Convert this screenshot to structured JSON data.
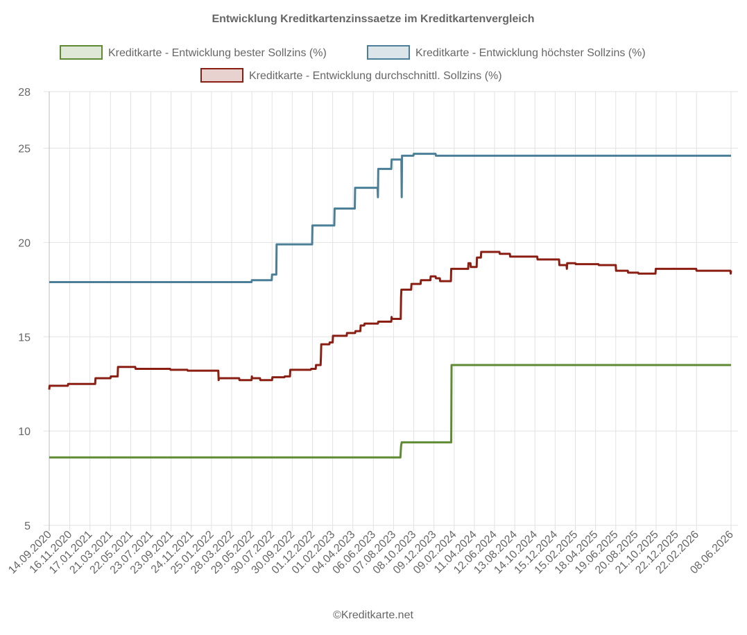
{
  "chart_data": {
    "type": "line",
    "title": "Entwicklung Kreditkartenzinssaetze im Kreditkartenvergleich",
    "credit": "©Kreditkarte.net",
    "grid": true,
    "legend": "top",
    "xlim": [
      "14.09.2020",
      "08.06.2026"
    ],
    "xticks": [
      "14.09.2020",
      "16.11.2020",
      "17.01.2021",
      "21.03.2021",
      "22.05.2021",
      "23.07.2021",
      "23.09.2021",
      "24.11.2021",
      "25.01.2022",
      "28.03.2022",
      "29.05.2022",
      "30.07.2022",
      "30.09.2022",
      "01.12.2022",
      "01.02.2023",
      "04.04.2023",
      "06.06.2023",
      "07.08.2023",
      "08.10.2023",
      "09.12.2023",
      "09.02.2024",
      "11.04.2024",
      "12.06.2024",
      "13.08.2024",
      "14.10.2024",
      "15.12.2024",
      "15.02.2025",
      "18.04.2025",
      "19.06.2025",
      "20.08.2025",
      "21.10.2025",
      "22.12.2025",
      "22.02.2026",
      "08.06.2026"
    ],
    "ylim": [
      5,
      28
    ],
    "yticks": [
      5,
      10,
      15,
      20,
      25,
      28
    ],
    "series": [
      {
        "name": "Kreditkarte - Entwicklung bester Sollzins  (%)",
        "color": "#5e8a34",
        "x": [
          "14.09.2020",
          "28.08.2023",
          "30.08.2023",
          "01.09.2023",
          "31.01.2024",
          "01.02.2024",
          "08.06.2026"
        ],
        "values": [
          8.6,
          8.6,
          9.2,
          9.4,
          9.4,
          13.5,
          13.5
        ]
      },
      {
        "name": "Kreditkarte - Entwicklung höchster Sollzins (%)",
        "color": "#4a7f97",
        "x": [
          "14.09.2020",
          "28.05.2022",
          "29.05.2022",
          "29.07.2022",
          "30.07.2022",
          "12.08.2022",
          "13.08.2022",
          "30.11.2022",
          "01.12.2022",
          "06.02.2023",
          "07.02.2023",
          "10.04.2023",
          "11.04.2023",
          "19.06.2023",
          "20.06.2023",
          "21.06.2023",
          "31.07.2023",
          "01.08.2023",
          "31.08.2023",
          "01.09.2023",
          "02.09.2023",
          "07.10.2023",
          "08.10.2023",
          "14.12.2023",
          "15.12.2023",
          "08.06.2026"
        ],
        "values": [
          17.9,
          17.9,
          18.0,
          18.0,
          18.3,
          18.3,
          19.9,
          19.9,
          20.9,
          20.9,
          21.8,
          21.8,
          22.9,
          22.9,
          22.4,
          23.9,
          23.9,
          24.4,
          24.4,
          22.4,
          24.6,
          24.6,
          24.7,
          24.7,
          24.6,
          24.6
        ]
      },
      {
        "name": "Kreditkarte - Entwicklung durchschnittl. Sollzins (%)",
        "color": "#8a1e12",
        "x": [
          "14.09.2020",
          "15.09.2020",
          "10.11.2020",
          "11.11.2020",
          "02.02.2021",
          "03.02.2021",
          "21.03.2021",
          "22.03.2021",
          "12.04.2021",
          "13.04.2021",
          "05.06.2021",
          "06.06.2021",
          "20.09.2021",
          "21.09.2021",
          "12.11.2021",
          "13.11.2021",
          "15.02.2022",
          "16.02.2022",
          "17.02.2022",
          "20.04.2022",
          "21.04.2022",
          "28.05.2022",
          "29.05.2022",
          "30.05.2022",
          "23.06.2022",
          "24.06.2022",
          "30.07.2022",
          "31.07.2022",
          "06.09.2022",
          "07.09.2022",
          "23.09.2022",
          "24.09.2022",
          "26.11.2022",
          "27.11.2022",
          "11.12.2022",
          "12.12.2022",
          "26.12.2022",
          "27.12.2022",
          "28.12.2022",
          "22.01.2023",
          "23.01.2023",
          "01.02.2023",
          "02.02.2023",
          "16.03.2023",
          "17.03.2023",
          "11.04.2023",
          "12.04.2023",
          "27.04.2023",
          "28.04.2023",
          "09.05.2023",
          "10.05.2023",
          "20.06.2023",
          "21.06.2023",
          "31.07.2023",
          "01.08.2023",
          "02.08.2023",
          "29.08.2023",
          "30.08.2023",
          "31.08.2023",
          "30.09.2023",
          "01.10.2023",
          "29.10.2023",
          "30.10.2023",
          "28.11.2023",
          "29.11.2023",
          "14.12.2023",
          "15.12.2023",
          "27.12.2023",
          "28.12.2023",
          "30.01.2024",
          "31.01.2024",
          "23.03.2024",
          "24.03.2024",
          "30.03.2024",
          "31.03.2024",
          "18.04.2024",
          "19.04.2024",
          "01.05.2024",
          "02.05.2024",
          "27.06.2024",
          "28.06.2024",
          "29.07.2024",
          "30.07.2024",
          "21.10.2024",
          "22.10.2024",
          "27.12.2024",
          "28.12.2024",
          "19.01.2025",
          "20.01.2025",
          "21.01.2025",
          "15.02.2025",
          "16.02.2025",
          "27.04.2025",
          "28.04.2025",
          "19.06.2025",
          "20.06.2025",
          "26.07.2025",
          "27.07.2025",
          "27.08.2025",
          "28.08.2025",
          "19.10.2025",
          "20.10.2025",
          "21.02.2026",
          "22.02.2026",
          "06.06.2026",
          "07.06.2026",
          "08.06.2026"
        ],
        "values": [
          12.2,
          12.4,
          12.4,
          12.5,
          12.5,
          12.8,
          12.8,
          12.9,
          12.9,
          13.4,
          13.4,
          13.3,
          13.3,
          13.25,
          13.25,
          13.2,
          13.2,
          12.7,
          12.8,
          12.8,
          12.7,
          12.7,
          12.9,
          12.8,
          12.8,
          12.7,
          12.7,
          12.85,
          12.85,
          12.9,
          12.9,
          13.25,
          13.25,
          13.3,
          13.3,
          13.5,
          13.5,
          13.9,
          14.6,
          14.6,
          14.7,
          14.7,
          15.05,
          15.05,
          15.2,
          15.2,
          15.3,
          15.3,
          15.6,
          15.6,
          15.7,
          15.7,
          15.8,
          15.8,
          16.05,
          15.95,
          15.95,
          17.1,
          17.5,
          17.5,
          17.8,
          17.8,
          18.0,
          18.0,
          18.2,
          18.2,
          18.1,
          18.1,
          17.95,
          17.95,
          18.6,
          18.6,
          18.9,
          18.9,
          18.7,
          18.7,
          19.2,
          19.2,
          19.5,
          19.5,
          19.4,
          19.4,
          19.25,
          19.25,
          19.1,
          19.1,
          18.8,
          18.8,
          18.6,
          18.9,
          18.9,
          18.85,
          18.85,
          18.8,
          18.8,
          18.5,
          18.5,
          18.4,
          18.4,
          18.35,
          18.35,
          18.6,
          18.6,
          18.5,
          18.5,
          18.35,
          18.5
        ]
      }
    ]
  }
}
